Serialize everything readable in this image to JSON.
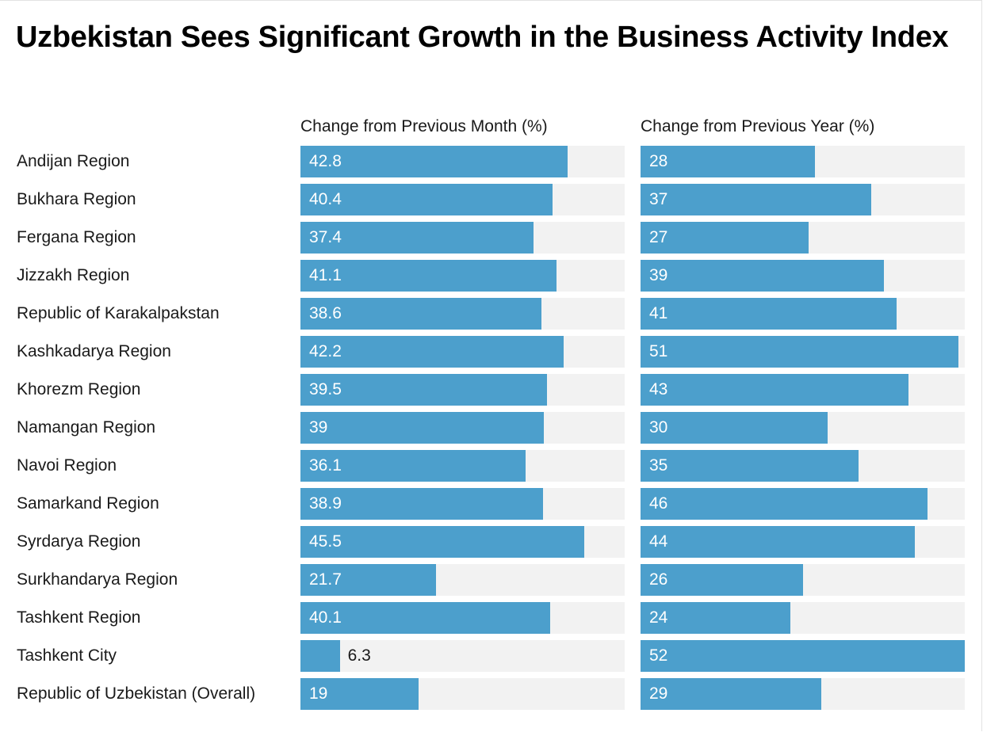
{
  "chart_data": {
    "type": "bar",
    "orientation": "horizontal",
    "title": "Uzbekistan Sees Significant Growth in the Business Activity Index",
    "categories": [
      "Andijan Region",
      "Bukhara Region",
      "Fergana Region",
      "Jizzakh Region",
      "Republic of Karakalpakstan",
      "Kashkadarya Region",
      "Khorezm Region",
      "Namangan Region",
      "Navoi Region",
      "Samarkand Region",
      "Syrdarya Region",
      "Surkhandarya Region",
      "Tashkent Region",
      "Tashkent City",
      "Republic of Uzbekistan (Overall)"
    ],
    "series": [
      {
        "name": "Change from Previous Month (%)",
        "values": [
          42.8,
          40.4,
          37.4,
          41.1,
          38.6,
          42.2,
          39.5,
          39,
          36.1,
          38.9,
          45.5,
          21.7,
          40.1,
          6.3,
          19
        ],
        "xlim": [
          0,
          52
        ],
        "color": "#4c9fcc"
      },
      {
        "name": "Change from Previous Year (%)",
        "values": [
          28,
          37,
          27,
          39,
          41,
          51,
          43,
          30,
          35,
          46,
          44,
          26,
          24,
          52,
          29
        ],
        "xlim": [
          0,
          52
        ],
        "color": "#4c9fcc"
      }
    ],
    "track_color": "#f2f2f2",
    "legend": "none",
    "grid": false
  }
}
